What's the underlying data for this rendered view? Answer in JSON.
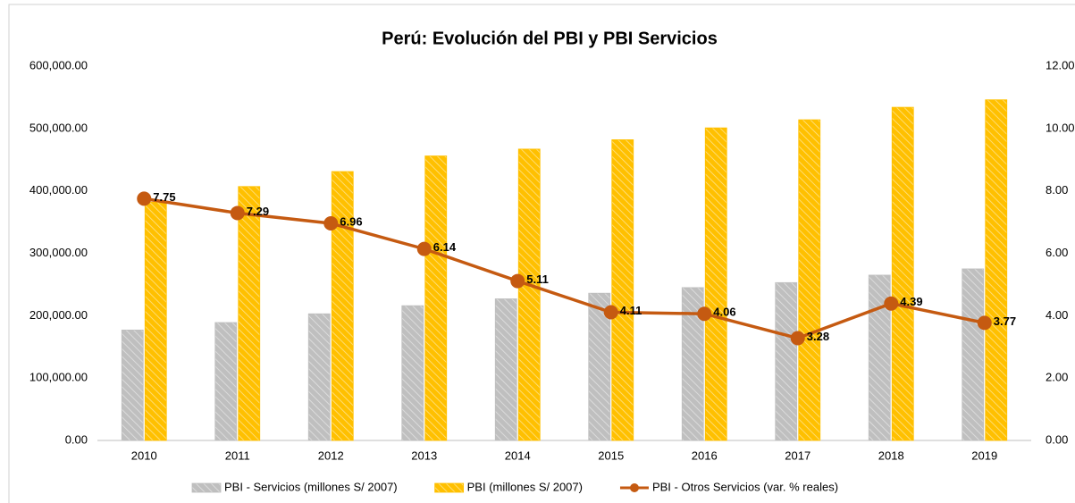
{
  "chart_data": {
    "type": "bar_line",
    "title": "Perú: Evolución del PBI y PBI Servicios",
    "categories": [
      "2010",
      "2011",
      "2012",
      "2013",
      "2014",
      "2015",
      "2016",
      "2017",
      "2018",
      "2019"
    ],
    "series": [
      {
        "name": "PBI - Servicios (millones S/ 2007)",
        "color": "#bfbfbf",
        "type": "bar",
        "values": [
          177000,
          189000,
          203000,
          216000,
          227000,
          236000,
          245000,
          253000,
          265000,
          275000
        ]
      },
      {
        "name": "PBI (millones S/ 2007)",
        "color": "#ffc000",
        "type": "bar",
        "values": [
          382000,
          407000,
          431000,
          456000,
          467000,
          482000,
          501000,
          514000,
          534000,
          546000
        ]
      },
      {
        "name": "PBI - Otros Servicios (var. % reales)",
        "color": "#c55a11",
        "type": "line",
        "axis": "y2",
        "values": [
          7.75,
          7.29,
          6.96,
          6.14,
          5.11,
          4.11,
          4.06,
          3.28,
          4.39,
          3.77
        ]
      }
    ],
    "ylim": [
      0,
      600000
    ],
    "yticks": [
      {
        "value": 0,
        "label": "0.00"
      },
      {
        "value": 100000,
        "label": "100,000.00"
      },
      {
        "value": 200000,
        "label": "200,000.00"
      },
      {
        "value": 300000,
        "label": "300,000.00"
      },
      {
        "value": 400000,
        "label": "400,000.00"
      },
      {
        "value": 500000,
        "label": "500,000.00"
      },
      {
        "value": 600000,
        "label": "600,000.00"
      }
    ],
    "y2lim": [
      0,
      12
    ],
    "y2ticks": [
      {
        "value": 0,
        "label": "0.00"
      },
      {
        "value": 2,
        "label": "2.00"
      },
      {
        "value": 4,
        "label": "4.00"
      },
      {
        "value": 6,
        "label": "6.00"
      },
      {
        "value": 8,
        "label": "8.00"
      },
      {
        "value": 10,
        "label": "10.00"
      },
      {
        "value": 12,
        "label": "12.00"
      }
    ],
    "grid": false
  }
}
